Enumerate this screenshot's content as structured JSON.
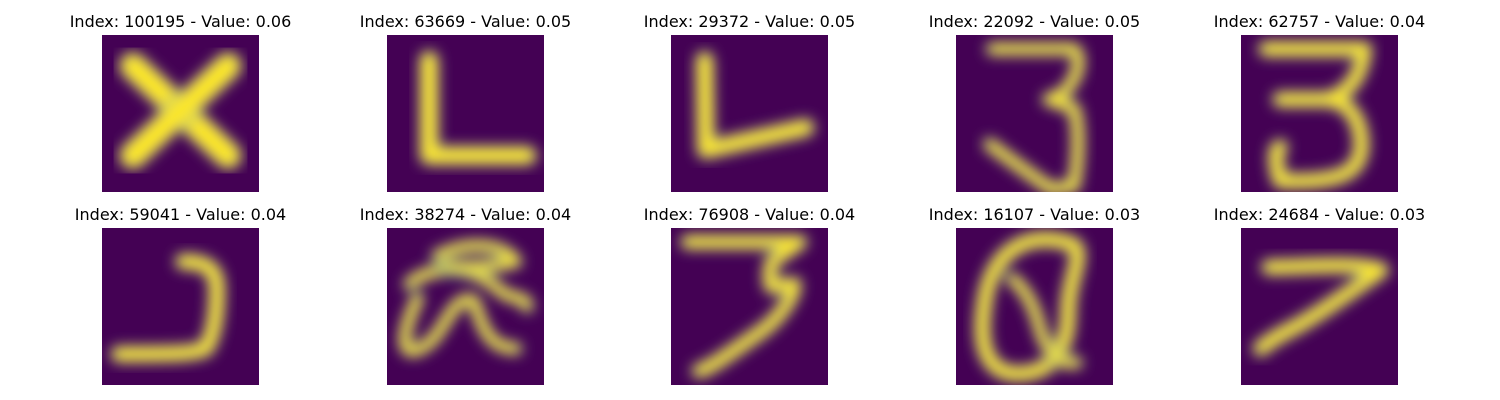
{
  "chart_data": {
    "type": "image-grid",
    "colormap": "viridis",
    "background_color": "#440154",
    "stroke_color": "#fde725",
    "edge_color": "#21918c",
    "grid": {
      "rows": 2,
      "cols": 5
    },
    "panels": [
      {
        "title": "Index: 100195 - Value: 0.06",
        "index": 100195,
        "value": 0.06,
        "depicts": "X"
      },
      {
        "title": "Index: 63669 - Value: 0.05",
        "index": 63669,
        "value": 0.05,
        "depicts": "L"
      },
      {
        "title": "Index: 29372 - Value: 0.05",
        "index": 29372,
        "value": 0.05,
        "depicts": "L"
      },
      {
        "title": "Index: 22092 - Value: 0.05",
        "index": 22092,
        "value": 0.05,
        "depicts": "3"
      },
      {
        "title": "Index: 62757 - Value: 0.04",
        "index": 62757,
        "value": 0.04,
        "depicts": "3"
      },
      {
        "title": "Index: 59041 - Value: 0.04",
        "index": 59041,
        "value": 0.04,
        "depicts": "J"
      },
      {
        "title": "Index: 38274 - Value: 0.04",
        "index": 38274,
        "value": 0.04,
        "depicts": "a"
      },
      {
        "title": "Index: 76908 - Value: 0.04",
        "index": 76908,
        "value": 0.04,
        "depicts": "3"
      },
      {
        "title": "Index: 16107 - Value: 0.03",
        "index": 16107,
        "value": 0.03,
        "depicts": "Q"
      },
      {
        "title": "Index: 24684 - Value: 0.03",
        "index": 24684,
        "value": 0.03,
        "depicts": "7"
      }
    ]
  }
}
